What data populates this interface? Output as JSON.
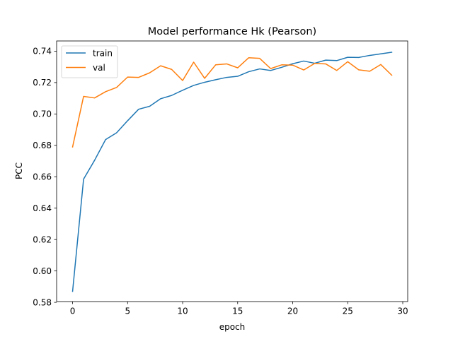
{
  "chart_data": {
    "type": "line",
    "title": "Model performance Hk (Pearson)",
    "xlabel": "epoch",
    "ylabel": "PCC",
    "xlim": [
      -1.45,
      30.45
    ],
    "ylim": [
      0.5805,
      0.7465
    ],
    "xticks": [
      0,
      5,
      10,
      15,
      20,
      25,
      30
    ],
    "xtick_labels": [
      "0",
      "5",
      "10",
      "15",
      "20",
      "25",
      "30"
    ],
    "yticks": [
      0.58,
      0.6,
      0.62,
      0.64,
      0.66,
      0.68,
      0.7,
      0.72,
      0.74
    ],
    "ytick_labels": [
      "0.58",
      "0.60",
      "0.62",
      "0.64",
      "0.66",
      "0.68",
      "0.70",
      "0.72",
      "0.74"
    ],
    "grid": false,
    "legend_position": "upper-left",
    "x": [
      0,
      1,
      2,
      3,
      4,
      5,
      6,
      7,
      8,
      9,
      10,
      11,
      12,
      13,
      14,
      15,
      16,
      17,
      18,
      19,
      20,
      21,
      22,
      23,
      24,
      25,
      26,
      27,
      28,
      29
    ],
    "series": [
      {
        "name": "train",
        "color": "#1f77b4",
        "values": [
          0.587,
          0.6585,
          0.6705,
          0.6837,
          0.688,
          0.6957,
          0.703,
          0.7049,
          0.7097,
          0.7118,
          0.7151,
          0.7182,
          0.7202,
          0.7218,
          0.7233,
          0.724,
          0.7269,
          0.7287,
          0.7277,
          0.7297,
          0.732,
          0.7337,
          0.7323,
          0.7343,
          0.734,
          0.7361,
          0.736,
          0.7373,
          0.7383,
          0.7393
        ]
      },
      {
        "name": "val",
        "color": "#ff7f0e",
        "values": [
          0.679,
          0.7112,
          0.7102,
          0.7142,
          0.7169,
          0.7235,
          0.7233,
          0.7262,
          0.7307,
          0.7284,
          0.7213,
          0.733,
          0.7227,
          0.7313,
          0.7319,
          0.7294,
          0.7358,
          0.7354,
          0.7289,
          0.7313,
          0.7311,
          0.728,
          0.7322,
          0.7319,
          0.7277,
          0.7333,
          0.7281,
          0.7272,
          0.7315,
          0.7247
        ]
      }
    ]
  }
}
